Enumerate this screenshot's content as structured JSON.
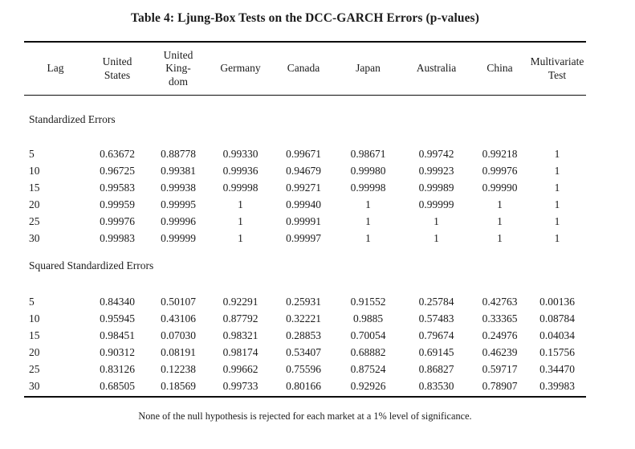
{
  "title": "Table 4: Ljung-Box Tests on the DCC-GARCH Errors (p-values)",
  "table": {
    "columns": [
      "Lag",
      "United\nStates",
      "United\nKing-\ndom",
      "Germany",
      "Canada",
      "Japan",
      "Australia",
      "China",
      "Multivariate\nTest"
    ],
    "sections": [
      {
        "label": "Standardized Errors",
        "rows": [
          [
            "5",
            "0.63672",
            "0.88778",
            "0.99330",
            "0.99671",
            "0.98671",
            "0.99742",
            "0.99218",
            "1"
          ],
          [
            "10",
            "0.96725",
            "0.99381",
            "0.99936",
            "0.94679",
            "0.99980",
            "0.99923",
            "0.99976",
            "1"
          ],
          [
            "15",
            "0.99583",
            "0.99938",
            "0.99998",
            "0.99271",
            "0.99998",
            "0.99989",
            "0.99990",
            "1"
          ],
          [
            "20",
            "0.99959",
            "0.99995",
            "1",
            "0.99940",
            "1",
            "0.99999",
            "1",
            "1"
          ],
          [
            "25",
            "0.99976",
            "0.99996",
            "1",
            "0.99991",
            "1",
            "1",
            "1",
            "1"
          ],
          [
            "30",
            "0.99983",
            "0.99999",
            "1",
            "0.99997",
            "1",
            "1",
            "1",
            "1"
          ]
        ]
      },
      {
        "label": "Squared Standardized Errors",
        "rows": [
          [
            "5",
            "0.84340",
            "0.50107",
            "0.92291",
            "0.25931",
            "0.91552",
            "0.25784",
            "0.42763",
            "0.00136"
          ],
          [
            "10",
            "0.95945",
            "0.43106",
            "0.87792",
            "0.32221",
            "0.9885",
            "0.57483",
            "0.33365",
            "0.08784"
          ],
          [
            "15",
            "0.98451",
            "0.07030",
            "0.98321",
            "0.28853",
            "0.70054",
            "0.79674",
            "0.24976",
            "0.04034"
          ],
          [
            "20",
            "0.90312",
            "0.08191",
            "0.98174",
            "0.53407",
            "0.68882",
            "0.69145",
            "0.46239",
            "0.15756"
          ],
          [
            "25",
            "0.83126",
            "0.12238",
            "0.99662",
            "0.75596",
            "0.87524",
            "0.86827",
            "0.59717",
            "0.34470"
          ],
          [
            "30",
            "0.68505",
            "0.18569",
            "0.99733",
            "0.80166",
            "0.92926",
            "0.83530",
            "0.78907",
            "0.39983"
          ]
        ]
      }
    ]
  },
  "footnote": "None of the null hypothesis is rejected for each market at a 1% level of significance."
}
